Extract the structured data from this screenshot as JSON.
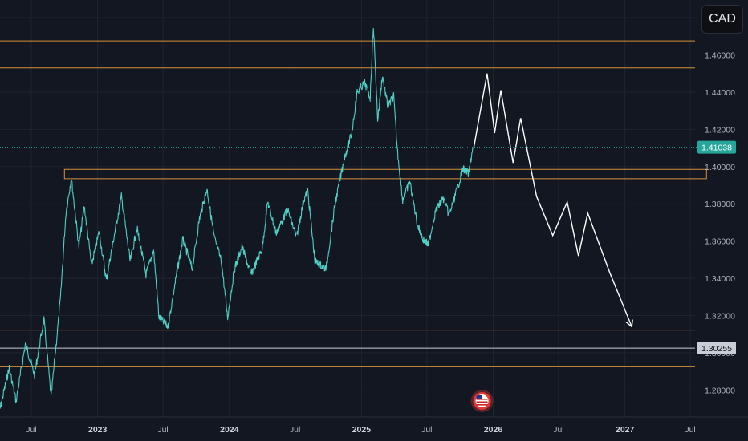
{
  "header": {
    "pair_label": "CAD"
  },
  "chart_data": {
    "type": "line",
    "ylim": [
      1.2655,
      1.4895
    ],
    "yticks": [
      1.28,
      1.3,
      1.32,
      1.34,
      1.36,
      1.38,
      1.4,
      1.42,
      1.44,
      1.46,
      1.48
    ],
    "ytick_labels": [
      "1.28000",
      "1.30000",
      "1.32000",
      "1.34000",
      "1.36000",
      "1.38000",
      "1.40000",
      "1.42000",
      "1.44000",
      "1.46000",
      "1.48000"
    ],
    "x_range": [
      "2022-04-01",
      "2027-08-01"
    ],
    "xticks": [
      {
        "date": "2022-07-01",
        "label": "Jul",
        "year": false
      },
      {
        "date": "2023-01-01",
        "label": "2023",
        "year": true
      },
      {
        "date": "2023-07-01",
        "label": "Jul",
        "year": false
      },
      {
        "date": "2024-01-01",
        "label": "2024",
        "year": true
      },
      {
        "date": "2024-07-01",
        "label": "Jul",
        "year": false
      },
      {
        "date": "2025-01-01",
        "label": "2025",
        "year": true
      },
      {
        "date": "2025-07-01",
        "label": "Jul",
        "year": false
      },
      {
        "date": "2026-01-01",
        "label": "2026",
        "year": true
      },
      {
        "date": "2026-07-01",
        "label": "Jul",
        "year": false
      },
      {
        "date": "2027-01-01",
        "label": "2027",
        "year": true
      },
      {
        "date": "2027-07-01",
        "label": "Jul",
        "year": false
      }
    ],
    "series": [
      {
        "color": "#4fd1c5",
        "points": [
          [
            "2022-04-01",
            1.266
          ],
          [
            "2022-05-01",
            1.292
          ],
          [
            "2022-05-20",
            1.274
          ],
          [
            "2022-06-15",
            1.305
          ],
          [
            "2022-07-10",
            1.288
          ],
          [
            "2022-08-05",
            1.318
          ],
          [
            "2022-08-25",
            1.276
          ],
          [
            "2022-09-20",
            1.329
          ],
          [
            "2022-10-05",
            1.375
          ],
          [
            "2022-10-20",
            1.394
          ],
          [
            "2022-11-10",
            1.357
          ],
          [
            "2022-11-25",
            1.379
          ],
          [
            "2022-12-15",
            1.347
          ],
          [
            "2023-01-05",
            1.365
          ],
          [
            "2023-01-25",
            1.339
          ],
          [
            "2023-02-15",
            1.362
          ],
          [
            "2023-03-08",
            1.384
          ],
          [
            "2023-04-01",
            1.349
          ],
          [
            "2023-04-20",
            1.367
          ],
          [
            "2023-05-15",
            1.342
          ],
          [
            "2023-06-05",
            1.355
          ],
          [
            "2023-06-20",
            1.319
          ],
          [
            "2023-07-15",
            1.314
          ],
          [
            "2023-08-05",
            1.339
          ],
          [
            "2023-08-25",
            1.361
          ],
          [
            "2023-09-20",
            1.345
          ],
          [
            "2023-10-10",
            1.372
          ],
          [
            "2023-10-31",
            1.388
          ],
          [
            "2023-11-20",
            1.362
          ],
          [
            "2023-12-10",
            1.349
          ],
          [
            "2023-12-27",
            1.319
          ],
          [
            "2024-01-15",
            1.345
          ],
          [
            "2024-02-05",
            1.357
          ],
          [
            "2024-03-01",
            1.342
          ],
          [
            "2024-04-01",
            1.356
          ],
          [
            "2024-04-16",
            1.381
          ],
          [
            "2024-05-10",
            1.364
          ],
          [
            "2024-06-10",
            1.377
          ],
          [
            "2024-07-05",
            1.362
          ],
          [
            "2024-07-25",
            1.382
          ],
          [
            "2024-08-05",
            1.387
          ],
          [
            "2024-08-25",
            1.349
          ],
          [
            "2024-09-25",
            1.345
          ],
          [
            "2024-10-20",
            1.38
          ],
          [
            "2024-11-15",
            1.405
          ],
          [
            "2024-12-05",
            1.418
          ],
          [
            "2024-12-20",
            1.44
          ],
          [
            "2025-01-10",
            1.445
          ],
          [
            "2025-01-25",
            1.437
          ],
          [
            "2025-02-03",
            1.476
          ],
          [
            "2025-02-15",
            1.425
          ],
          [
            "2025-02-28",
            1.449
          ],
          [
            "2025-03-15",
            1.432
          ],
          [
            "2025-03-31",
            1.438
          ],
          [
            "2025-04-10",
            1.41
          ],
          [
            "2025-04-25",
            1.382
          ],
          [
            "2025-05-15",
            1.392
          ],
          [
            "2025-06-05",
            1.369
          ],
          [
            "2025-06-20",
            1.361
          ],
          [
            "2025-07-05",
            1.358
          ],
          [
            "2025-07-25",
            1.376
          ],
          [
            "2025-08-15",
            1.383
          ],
          [
            "2025-09-01",
            1.374
          ],
          [
            "2025-09-20",
            1.386
          ],
          [
            "2025-10-10",
            1.399
          ],
          [
            "2025-10-25",
            1.396
          ],
          [
            "2025-11-05",
            1.41
          ]
        ]
      },
      {
        "color": "#ffffff",
        "points": [
          [
            "2025-11-08",
            1.41
          ],
          [
            "2025-12-15",
            1.45
          ],
          [
            "2026-01-05",
            1.418
          ],
          [
            "2026-01-22",
            1.441
          ],
          [
            "2026-02-25",
            1.402
          ],
          [
            "2026-03-18",
            1.426
          ],
          [
            "2026-05-01",
            1.384
          ],
          [
            "2026-06-15",
            1.363
          ],
          [
            "2026-07-25",
            1.381
          ],
          [
            "2026-08-25",
            1.352
          ],
          [
            "2026-09-20",
            1.375
          ],
          [
            "2026-11-20",
            1.343
          ],
          [
            "2027-01-20",
            1.314
          ]
        ]
      }
    ],
    "horizontal_levels": [
      {
        "price": 1.4675,
        "color": "#d4903a"
      },
      {
        "price": 1.453,
        "color": "#d4903a"
      },
      {
        "price": 1.3122,
        "color": "#d4903a"
      },
      {
        "price": 1.3025,
        "color": "#c9cdd6"
      },
      {
        "price": 1.2925,
        "color": "#d4903a"
      }
    ],
    "zone": {
      "x_from": "2022-10-01",
      "x_to": "2027-08-15",
      "y_low": 1.3935,
      "y_high": 1.3985,
      "color": "#d4903a"
    },
    "price_tags": [
      {
        "label": "1.41038",
        "price": 1.41038,
        "background": "#26a69a",
        "text_color": "#ffffff",
        "dotted_line": true
      },
      {
        "label": "1.30255",
        "price": 1.30255,
        "background": "#c9cdd6",
        "text_color": "#131722",
        "dotted_line": false
      }
    ],
    "events": [
      {
        "date": "2025-12-01",
        "icon": "us-flag-icon",
        "color": "#e53935"
      }
    ]
  }
}
